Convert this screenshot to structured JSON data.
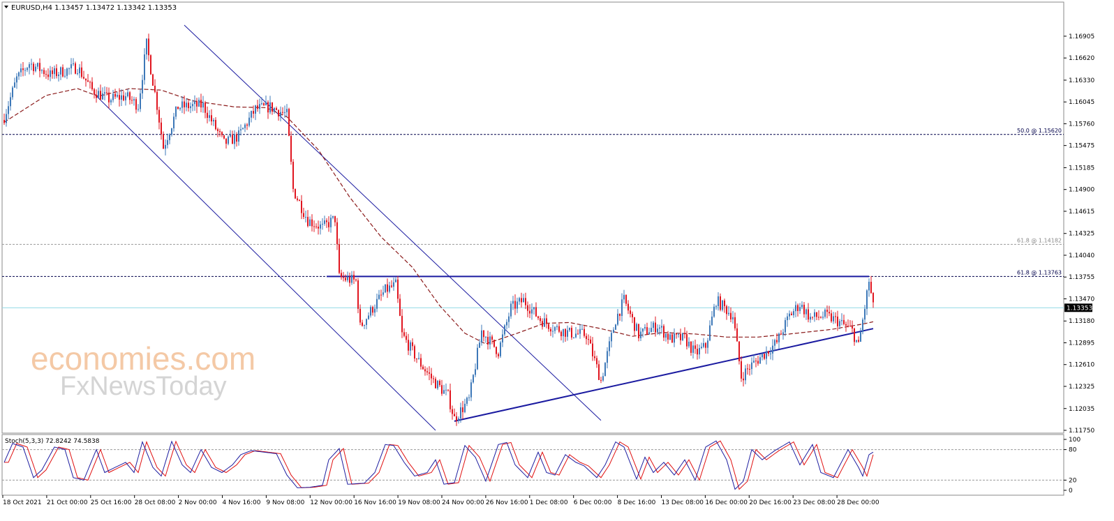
{
  "header": {
    "title": "EURUSD,H4  1.13457 1.13472 1.13342 1.13353",
    "triangle_icon": "triangle-down-icon"
  },
  "watermark": {
    "line1": "economies.com",
    "line2": "FxNewsToday"
  },
  "stoch": {
    "title": "Stoch(5,3,3) 72.8242 74.5838",
    "levels": [
      100,
      80,
      20,
      0
    ],
    "main_color": "#1e1ea0",
    "signal_color": "#e01010"
  },
  "colors": {
    "bull": "#3d78b8",
    "bear": "#e0151f",
    "ma": "#8b1a1a",
    "trendline": "#1a1aa0",
    "fib": "#00004a",
    "current": "#8fd8e6"
  },
  "chart_data": {
    "type": "candlestick",
    "symbol": "EURUSD",
    "timeframe": "H4",
    "ohlc_header": {
      "open": 1.13457,
      "high": 1.13472,
      "low": 1.13342,
      "close": 1.13353
    },
    "current_price": "1.13353",
    "ylim": [
      1.1175,
      1.1705
    ],
    "y_ticks": [
      "1.16905",
      "1.16620",
      "1.16330",
      "1.16045",
      "1.15760",
      "1.15475",
      "1.15185",
      "1.14900",
      "1.14615",
      "1.14325",
      "1.14040",
      "1.13755",
      "1.13470",
      "1.13180",
      "1.12895",
      "1.12610",
      "1.12325",
      "1.12035",
      "1.11750"
    ],
    "x_ticks": [
      "18 Oct 2021",
      "21 Oct 00:00",
      "25 Oct 16:00",
      "28 Oct 08:00",
      "2 Nov 00:00",
      "4 Nov 16:00",
      "9 Nov 08:00",
      "12 Nov 00:00",
      "16 Nov 16:00",
      "19 Nov 08:00",
      "24 Nov 00:00",
      "26 Nov 16:00",
      "1 Dec 08:00",
      "6 Dec 00:00",
      "8 Dec 16:00",
      "13 Dec 08:00",
      "16 Dec 00:00",
      "20 Dec 16:00",
      "23 Dec 08:00",
      "28 Dec 00:00"
    ],
    "fib_levels": [
      {
        "label": "50.0 @ 1.15620",
        "price": 1.1562,
        "style": "dotted-dark"
      },
      {
        "label": "61.8 @ 1.14182",
        "price": 1.14182,
        "style": "dotted-grey"
      },
      {
        "label": "61.8 @ 1.13763",
        "price": 1.13763,
        "style": "dotted-dark"
      }
    ],
    "resistance_price": 1.13763,
    "support_line": [
      {
        "bar": 215,
        "price": 1.1187
      },
      {
        "bar": 415,
        "price": 1.1308
      }
    ],
    "channel_upper": [
      {
        "bar": 86,
        "price": 1.1705
      },
      {
        "bar": 285,
        "price": 1.1188
      }
    ],
    "channel_lower": [
      {
        "bar": 43,
        "price": 1.1615
      },
      {
        "bar": 206,
        "price": 1.1175
      }
    ],
    "ma_waypoints": [
      [
        0,
        1.1578
      ],
      [
        20,
        1.1613
      ],
      [
        35,
        1.1622
      ],
      [
        45,
        1.1612
      ],
      [
        60,
        1.1622
      ],
      [
        75,
        1.162
      ],
      [
        90,
        1.1606
      ],
      [
        110,
        1.1598
      ],
      [
        125,
        1.1597
      ],
      [
        135,
        1.1585
      ],
      [
        150,
        1.1542
      ],
      [
        165,
        1.148
      ],
      [
        180,
        1.1428
      ],
      [
        195,
        1.1388
      ],
      [
        208,
        1.1338
      ],
      [
        220,
        1.1302
      ],
      [
        230,
        1.1288
      ],
      [
        245,
        1.1302
      ],
      [
        258,
        1.1315
      ],
      [
        270,
        1.1316
      ],
      [
        285,
        1.1308
      ],
      [
        300,
        1.1298
      ],
      [
        315,
        1.1303
      ],
      [
        330,
        1.1301
      ],
      [
        345,
        1.1297
      ],
      [
        360,
        1.1297
      ],
      [
        375,
        1.1301
      ],
      [
        395,
        1.1307
      ],
      [
        410,
        1.1314
      ],
      [
        415,
        1.1317
      ]
    ],
    "close_waypoints": [
      [
        0,
        1.1585
      ],
      [
        6,
        1.1635
      ],
      [
        12,
        1.1655
      ],
      [
        22,
        1.164
      ],
      [
        35,
        1.165
      ],
      [
        42,
        1.162
      ],
      [
        50,
        1.1608
      ],
      [
        58,
        1.1612
      ],
      [
        64,
        1.16
      ],
      [
        68,
        1.168
      ],
      [
        73,
        1.16
      ],
      [
        76,
        1.1545
      ],
      [
        83,
        1.1598
      ],
      [
        95,
        1.16
      ],
      [
        105,
        1.155
      ],
      [
        112,
        1.156
      ],
      [
        120,
        1.1595
      ],
      [
        127,
        1.1598
      ],
      [
        135,
        1.1588
      ],
      [
        138,
        1.149
      ],
      [
        145,
        1.145
      ],
      [
        152,
        1.144
      ],
      [
        158,
        1.1452
      ],
      [
        160,
        1.1375
      ],
      [
        168,
        1.137
      ],
      [
        170,
        1.131
      ],
      [
        176,
        1.1335
      ],
      [
        182,
        1.1358
      ],
      [
        187,
        1.1365
      ],
      [
        190,
        1.13
      ],
      [
        198,
        1.1265
      ],
      [
        205,
        1.124
      ],
      [
        212,
        1.122
      ],
      [
        215,
        1.119
      ],
      [
        222,
        1.1215
      ],
      [
        228,
        1.1305
      ],
      [
        236,
        1.1278
      ],
      [
        242,
        1.1335
      ],
      [
        248,
        1.1345
      ],
      [
        256,
        1.132
      ],
      [
        262,
        1.131
      ],
      [
        270,
        1.1302
      ],
      [
        278,
        1.13
      ],
      [
        285,
        1.124
      ],
      [
        292,
        1.132
      ],
      [
        296,
        1.1345
      ],
      [
        303,
        1.13
      ],
      [
        312,
        1.1312
      ],
      [
        318,
        1.1295
      ],
      [
        325,
        1.1295
      ],
      [
        330,
        1.1275
      ],
      [
        335,
        1.1285
      ],
      [
        340,
        1.1345
      ],
      [
        348,
        1.1325
      ],
      [
        352,
        1.1245
      ],
      [
        356,
        1.1258
      ],
      [
        363,
        1.1275
      ],
      [
        369,
        1.129
      ],
      [
        375,
        1.1325
      ],
      [
        380,
        1.134
      ],
      [
        385,
        1.1322
      ],
      [
        392,
        1.1325
      ],
      [
        398,
        1.1318
      ],
      [
        405,
        1.1305
      ],
      [
        408,
        1.1285
      ],
      [
        413,
        1.137
      ],
      [
        415,
        1.1335
      ]
    ],
    "stoch_waypoints": [
      [
        0,
        55
      ],
      [
        4,
        92
      ],
      [
        9,
        85
      ],
      [
        14,
        25
      ],
      [
        18,
        40
      ],
      [
        24,
        85
      ],
      [
        29,
        80
      ],
      [
        33,
        25
      ],
      [
        38,
        20
      ],
      [
        44,
        80
      ],
      [
        48,
        35
      ],
      [
        53,
        45
      ],
      [
        58,
        55
      ],
      [
        62,
        35
      ],
      [
        66,
        95
      ],
      [
        71,
        45
      ],
      [
        75,
        28
      ],
      [
        80,
        96
      ],
      [
        85,
        50
      ],
      [
        89,
        35
      ],
      [
        94,
        80
      ],
      [
        99,
        45
      ],
      [
        104,
        35
      ],
      [
        109,
        50
      ],
      [
        113,
        70
      ],
      [
        118,
        78
      ],
      [
        124,
        75
      ],
      [
        130,
        72
      ],
      [
        135,
        30
      ],
      [
        140,
        5
      ],
      [
        146,
        6
      ],
      [
        152,
        10
      ],
      [
        155,
        60
      ],
      [
        160,
        82
      ],
      [
        164,
        12
      ],
      [
        172,
        14
      ],
      [
        177,
        35
      ],
      [
        182,
        90
      ],
      [
        186,
        88
      ],
      [
        191,
        55
      ],
      [
        196,
        28
      ],
      [
        202,
        35
      ],
      [
        206,
        60
      ],
      [
        210,
        12
      ],
      [
        215,
        15
      ],
      [
        220,
        88
      ],
      [
        225,
        65
      ],
      [
        230,
        18
      ],
      [
        236,
        90
      ],
      [
        240,
        94
      ],
      [
        244,
        50
      ],
      [
        250,
        25
      ],
      [
        255,
        75
      ],
      [
        259,
        35
      ],
      [
        263,
        30
      ],
      [
        268,
        70
      ],
      [
        273,
        55
      ],
      [
        277,
        48
      ],
      [
        283,
        25
      ],
      [
        287,
        50
      ],
      [
        292,
        95
      ],
      [
        296,
        85
      ],
      [
        302,
        22
      ],
      [
        306,
        65
      ],
      [
        310,
        35
      ],
      [
        315,
        55
      ],
      [
        320,
        30
      ],
      [
        325,
        60
      ],
      [
        330,
        20
      ],
      [
        335,
        85
      ],
      [
        340,
        97
      ],
      [
        345,
        60
      ],
      [
        349,
        2
      ],
      [
        353,
        18
      ],
      [
        357,
        80
      ],
      [
        362,
        60
      ],
      [
        368,
        78
      ],
      [
        375,
        95
      ],
      [
        380,
        50
      ],
      [
        386,
        90
      ],
      [
        390,
        35
      ],
      [
        396,
        25
      ],
      [
        403,
        80
      ],
      [
        408,
        45
      ],
      [
        410,
        28
      ],
      [
        413,
        70
      ],
      [
        415,
        75
      ]
    ]
  }
}
